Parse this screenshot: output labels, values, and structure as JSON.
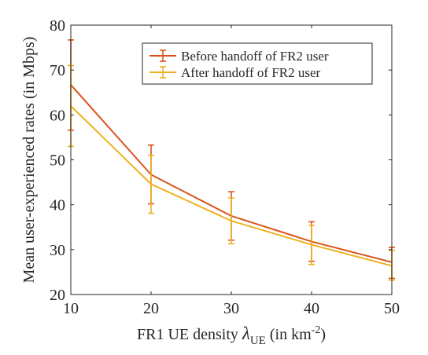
{
  "chart_data": {
    "type": "line",
    "x": [
      10,
      20,
      30,
      40,
      50
    ],
    "xlim": [
      10,
      50
    ],
    "ylim": [
      20,
      80
    ],
    "xticks": [
      "10",
      "20",
      "30",
      "40",
      "50"
    ],
    "yticks": [
      "20",
      "30",
      "40",
      "50",
      "60",
      "70",
      "80"
    ],
    "xlabel": {
      "prefix": "FR1 UE density ",
      "symbol": "λ",
      "symbol_sub": "UE",
      "unit_open": " (in km",
      "unit_exp": "-2",
      "unit_close": ")"
    },
    "ylabel": "Mean user-experienced rates (in Mbps)",
    "legend_position": "top-right",
    "grid": false,
    "series": [
      {
        "name": "Before handoff of FR2 user",
        "color": "#d95319",
        "values": [
          66.7,
          46.7,
          37.5,
          31.8,
          27.2
        ],
        "err_low": [
          56.6,
          40.2,
          32.1,
          27.4,
          23.6
        ],
        "err_high": [
          76.7,
          53.3,
          42.9,
          36.2,
          30.5
        ]
      },
      {
        "name": "After handoff of FR2 user",
        "color": "#edb120",
        "values": [
          62.0,
          44.6,
          36.4,
          31.1,
          26.4
        ],
        "err_low": [
          53.0,
          38.1,
          31.3,
          26.7,
          23.2
        ],
        "err_high": [
          71.0,
          51.0,
          41.5,
          35.4,
          29.8
        ]
      }
    ]
  }
}
